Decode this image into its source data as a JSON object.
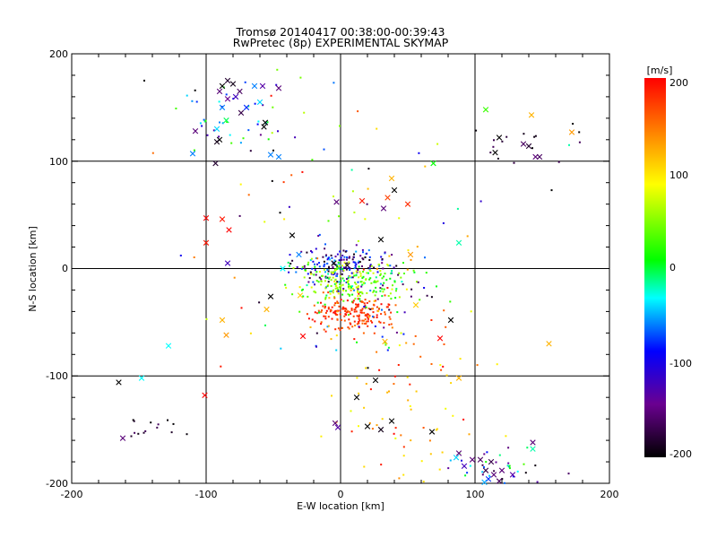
{
  "chart_data": {
    "type": "scatter",
    "title": "Tromsø 20140417 00:38:00-00:39:43",
    "subtitle": "RwPretec (8p) EXPERIMENTAL SKYMAP",
    "xlabel": "E-W location [km]",
    "ylabel": "N-S location [km]",
    "xlim": [
      -200,
      200
    ],
    "ylim": [
      -200,
      200
    ],
    "x_ticks": [
      "-200",
      "-100",
      "0",
      "100",
      "200"
    ],
    "y_ticks": [
      "-200",
      "-100",
      "0",
      "100",
      "200"
    ],
    "grid": true,
    "grid_lines_x": [
      -100,
      0,
      100
    ],
    "grid_lines_y": [
      -100,
      0,
      100
    ],
    "colorbar": {
      "label": "[m/s]",
      "range": [
        -200,
        200
      ],
      "ticks": [
        "200",
        "100",
        "0",
        "-100",
        "-200"
      ],
      "colormap": [
        "#000000",
        "#6a0090",
        "#0000ff",
        "#00ffff",
        "#00ff00",
        "#ffff00",
        "#ff8000",
        "#ff0000"
      ]
    },
    "series": [
      {
        "marker": "x",
        "points": [
          {
            "x": -84,
            "y": 175,
            "v": -180
          },
          {
            "x": -88,
            "y": 170,
            "v": -200
          },
          {
            "x": -80,
            "y": 172,
            "v": -190
          },
          {
            "x": -90,
            "y": 165,
            "v": -150
          },
          {
            "x": -75,
            "y": 165,
            "v": -160
          },
          {
            "x": -64,
            "y": 170,
            "v": -60
          },
          {
            "x": -58,
            "y": 170,
            "v": -130
          },
          {
            "x": -46,
            "y": 168,
            "v": -150
          },
          {
            "x": -78,
            "y": 160,
            "v": -120
          },
          {
            "x": -84,
            "y": 158,
            "v": -140
          },
          {
            "x": -88,
            "y": 150,
            "v": -60
          },
          {
            "x": -70,
            "y": 150,
            "v": -80
          },
          {
            "x": -60,
            "y": 155,
            "v": -40
          },
          {
            "x": -74,
            "y": 145,
            "v": -170
          },
          {
            "x": -85,
            "y": 138,
            "v": -10
          },
          {
            "x": -92,
            "y": 130,
            "v": -40
          },
          {
            "x": -108,
            "y": 128,
            "v": -150
          },
          {
            "x": -90,
            "y": 120,
            "v": -200
          },
          {
            "x": -92,
            "y": 118,
            "v": -190
          },
          {
            "x": -110,
            "y": 107,
            "v": -60
          },
          {
            "x": -93,
            "y": 98,
            "v": -180
          },
          {
            "x": -56,
            "y": 136,
            "v": -200
          },
          {
            "x": -52,
            "y": 106,
            "v": -60
          },
          {
            "x": -46,
            "y": 104,
            "v": -60
          },
          {
            "x": -57,
            "y": 132,
            "v": -200
          },
          {
            "x": 108,
            "y": 148,
            "v": 20
          },
          {
            "x": 142,
            "y": 143,
            "v": 120
          },
          {
            "x": 172,
            "y": 127,
            "v": 130
          },
          {
            "x": 118,
            "y": 122,
            "v": -200
          },
          {
            "x": 136,
            "y": 116,
            "v": -160
          },
          {
            "x": 140,
            "y": 114,
            "v": -180
          },
          {
            "x": 115,
            "y": 108,
            "v": -200
          },
          {
            "x": 145,
            "y": 104,
            "v": -150
          },
          {
            "x": 148,
            "y": 104,
            "v": -160
          },
          {
            "x": 69,
            "y": 98,
            "v": 0
          },
          {
            "x": 38,
            "y": 84,
            "v": 120
          },
          {
            "x": 40,
            "y": 73,
            "v": -200
          },
          {
            "x": 35,
            "y": 66,
            "v": 170
          },
          {
            "x": 50,
            "y": 60,
            "v": 180
          },
          {
            "x": 32,
            "y": 56,
            "v": -150
          },
          {
            "x": 16,
            "y": 63,
            "v": 190
          },
          {
            "x": -3,
            "y": 62,
            "v": -150
          },
          {
            "x": -100,
            "y": 47,
            "v": 200
          },
          {
            "x": -88,
            "y": 46,
            "v": 190
          },
          {
            "x": -83,
            "y": 36,
            "v": 200
          },
          {
            "x": -36,
            "y": 31,
            "v": -200
          },
          {
            "x": -100,
            "y": 24,
            "v": 190
          },
          {
            "x": -31,
            "y": 13,
            "v": -60
          },
          {
            "x": 88,
            "y": 24,
            "v": -20
          },
          {
            "x": 30,
            "y": 27,
            "v": -200
          },
          {
            "x": 52,
            "y": 13,
            "v": 130
          },
          {
            "x": -43,
            "y": 0,
            "v": -30
          },
          {
            "x": -84,
            "y": 5,
            "v": -120
          },
          {
            "x": -5,
            "y": 5,
            "v": -200
          },
          {
            "x": 5,
            "y": 3,
            "v": -180
          },
          {
            "x": -52,
            "y": -26,
            "v": -200
          },
          {
            "x": -30,
            "y": -25,
            "v": 110
          },
          {
            "x": -55,
            "y": -38,
            "v": 120
          },
          {
            "x": -88,
            "y": -48,
            "v": 120
          },
          {
            "x": -85,
            "y": -62,
            "v": 130
          },
          {
            "x": 56,
            "y": -34,
            "v": 110
          },
          {
            "x": 82,
            "y": -48,
            "v": -200
          },
          {
            "x": 74,
            "y": -65,
            "v": 200
          },
          {
            "x": 155,
            "y": -70,
            "v": 120
          },
          {
            "x": 33,
            "y": -68,
            "v": 120
          },
          {
            "x": -28,
            "y": -63,
            "v": 200
          },
          {
            "x": -128,
            "y": -72,
            "v": -30
          },
          {
            "x": -148,
            "y": -102,
            "v": -30
          },
          {
            "x": -165,
            "y": -106,
            "v": -200
          },
          {
            "x": -101,
            "y": -118,
            "v": 200
          },
          {
            "x": 26,
            "y": -104,
            "v": -200
          },
          {
            "x": 88,
            "y": -102,
            "v": 120
          },
          {
            "x": 12,
            "y": -120,
            "v": -200
          },
          {
            "x": 38,
            "y": -142,
            "v": -200
          },
          {
            "x": -4,
            "y": -144,
            "v": -150
          },
          {
            "x": -2,
            "y": -148,
            "v": -130
          },
          {
            "x": 20,
            "y": -147,
            "v": -200
          },
          {
            "x": 30,
            "y": -150,
            "v": -190
          },
          {
            "x": 68,
            "y": -152,
            "v": -200
          },
          {
            "x": -162,
            "y": -158,
            "v": -150
          },
          {
            "x": 143,
            "y": -162,
            "v": -150
          },
          {
            "x": 143,
            "y": -168,
            "v": -20
          },
          {
            "x": 88,
            "y": -172,
            "v": -150
          },
          {
            "x": 98,
            "y": -178,
            "v": -150
          },
          {
            "x": 104,
            "y": -178,
            "v": -160
          },
          {
            "x": 112,
            "y": -180,
            "v": -170
          },
          {
            "x": 92,
            "y": -184,
            "v": -120
          },
          {
            "x": 108,
            "y": -188,
            "v": -170
          },
          {
            "x": 120,
            "y": -188,
            "v": -150
          },
          {
            "x": 114,
            "y": -192,
            "v": -150
          },
          {
            "x": 128,
            "y": -192,
            "v": -130
          },
          {
            "x": 110,
            "y": -196,
            "v": -80
          },
          {
            "x": 118,
            "y": -198,
            "v": -160
          },
          {
            "x": 107,
            "y": -199,
            "v": -50
          },
          {
            "x": 86,
            "y": -176,
            "v": -40
          }
        ]
      },
      {
        "marker": "dot",
        "clusters": [
          {
            "cx": 0,
            "cy": 2,
            "sx": 16,
            "sy": 8,
            "n": 170,
            "vmin": -200,
            "vmax": -40
          },
          {
            "cx": 8,
            "cy": -12,
            "sx": 20,
            "sy": 9,
            "n": 200,
            "vmin": -20,
            "vmax": 90
          },
          {
            "cx": 6,
            "cy": -40,
            "sx": 14,
            "sy": 8,
            "n": 170,
            "vmin": 150,
            "vmax": 200
          },
          {
            "cx": 20,
            "cy": -30,
            "sx": 30,
            "sy": 25,
            "n": 110,
            "vmin": -200,
            "vmax": 200
          },
          {
            "cx": 50,
            "cy": -120,
            "sx": 30,
            "sy": 45,
            "n": 80,
            "vmin": 80,
            "vmax": 200
          },
          {
            "cx": 120,
            "cy": -185,
            "sx": 20,
            "sy": 10,
            "n": 40,
            "vmin": -200,
            "vmax": 40
          },
          {
            "cx": -140,
            "cy": -150,
            "sx": 12,
            "sy": 6,
            "n": 14,
            "vmin": -200,
            "vmax": -160
          },
          {
            "cx": -80,
            "cy": 140,
            "sx": 20,
            "sy": 20,
            "n": 40,
            "vmin": -200,
            "vmax": 40
          },
          {
            "cx": 130,
            "cy": 115,
            "sx": 25,
            "sy": 10,
            "n": 16,
            "vmin": -200,
            "vmax": -160
          },
          {
            "cx": 0,
            "cy": 60,
            "sx": 60,
            "sy": 60,
            "n": 60,
            "vmin": -200,
            "vmax": 200
          }
        ],
        "points": [
          {
            "x": -146,
            "y": 175,
            "v": -200
          },
          {
            "x": -50,
            "y": 110,
            "v": -200
          },
          {
            "x": 157,
            "y": 73,
            "v": -200
          },
          {
            "x": 170,
            "y": 115,
            "v": -20
          },
          {
            "x": -45,
            "y": 52,
            "v": -200
          }
        ]
      }
    ]
  }
}
